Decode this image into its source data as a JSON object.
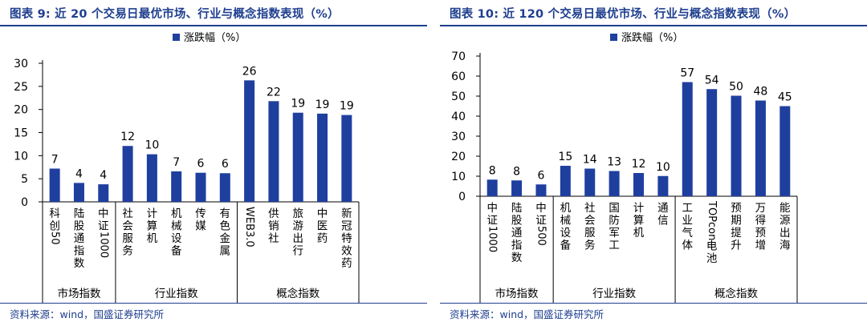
{
  "figures": [
    {
      "title": "图表 9:  近 20 个交易日最优市场、行业与概念指数表现（%）",
      "source": "资料来源：wind，国盛证券研究所"
    },
    {
      "title": "图表 10:  近 120 个交易日最优市场、行业与概念指数表现（%）",
      "source": "资料来源：wind，国盛证券研究所"
    }
  ],
  "chart_data": [
    {
      "type": "bar",
      "title": "近 20 个交易日最优市场、行业与概念指数表现（%）",
      "legend": "涨跌幅（%）",
      "bar_color": "#1f3f9f",
      "categories": [
        "科创50",
        "陆股通指数",
        "中证1000",
        "社会服务",
        "计算机",
        "机械设备",
        "传媒",
        "有色金属",
        "WEB3.0",
        "供销社",
        "旅游出行",
        "中医药",
        "新冠特效药"
      ],
      "values": [
        7.2,
        4.1,
        3.8,
        12.1,
        10.3,
        6.6,
        6.3,
        6.2,
        26.3,
        21.8,
        19.3,
        19.1,
        18.8
      ],
      "data_labels": [
        "7",
        "4",
        "4",
        "12",
        "10",
        "7",
        "6",
        "6",
        "26",
        "22",
        "19",
        "19",
        "19"
      ],
      "groups": [
        {
          "label": "市场指数",
          "count": 3
        },
        {
          "label": "行业指数",
          "count": 5
        },
        {
          "label": "概念指数",
          "count": 5
        }
      ],
      "yticks": [
        0,
        5,
        10,
        15,
        20,
        25,
        30
      ],
      "ylim": [
        0,
        30
      ],
      "xlabel": "",
      "ylabel": ""
    },
    {
      "type": "bar",
      "title": "近 120 个交易日最优市场、行业与概念指数表现（%）",
      "legend": "涨跌幅（%）",
      "bar_color": "#1f3f9f",
      "categories": [
        "中证1000",
        "陆股通指数",
        "中证500",
        "机械设备",
        "社会服务",
        "国防军工",
        "计算机",
        "通信",
        "工业气体",
        "TOPcon电池",
        "预期提升",
        "万得预增",
        "能源出海"
      ],
      "values": [
        8.3,
        7.9,
        5.9,
        15.2,
        13.8,
        12.6,
        11.6,
        10.1,
        57.0,
        53.5,
        50.2,
        47.8,
        45.0
      ],
      "data_labels": [
        "8",
        "8",
        "6",
        "15",
        "14",
        "13",
        "12",
        "10",
        "57",
        "54",
        "50",
        "48",
        "45"
      ],
      "groups": [
        {
          "label": "市场指数",
          "count": 3
        },
        {
          "label": "行业指数",
          "count": 5
        },
        {
          "label": "概念指数",
          "count": 5
        }
      ],
      "yticks": [
        0,
        10,
        20,
        30,
        40,
        50,
        60,
        70
      ],
      "ylim": [
        0,
        70
      ],
      "xlabel": "",
      "ylabel": ""
    }
  ]
}
